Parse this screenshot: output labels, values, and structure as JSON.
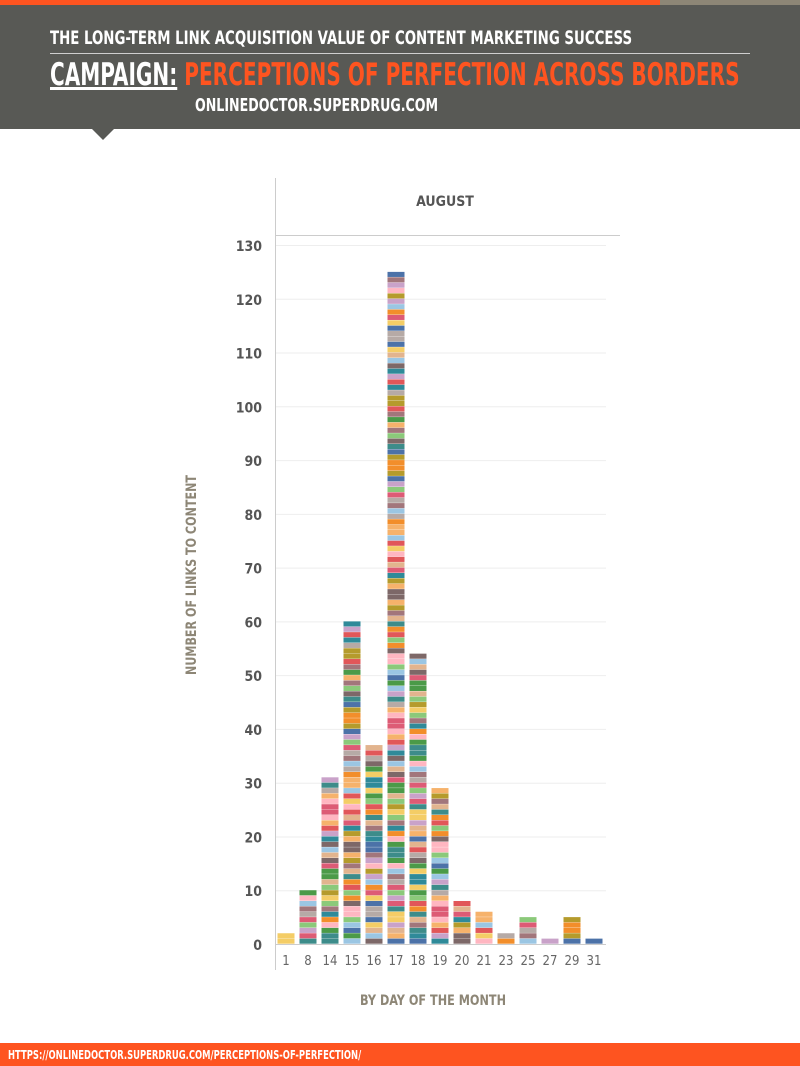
{
  "header": {
    "subtitle": "THE LONG-TERM LINK ACQUISITION VALUE OF CONTENT MARKETING SUCCESS",
    "campaign_label": "CAMPAIGN:",
    "campaign_name": "PERCEPTIONS OF PERFECTION ACROSS BORDERS",
    "site": "ONLINEDOCTOR.SUPERDRUG.COM"
  },
  "footer": {
    "url": "HTTPS://ONLINEDOCTOR.SUPERDRUG.COM/PERCEPTIONS-OF-PERFECTION/"
  },
  "chart_data": {
    "type": "bar",
    "stacked": true,
    "title": "AUGUST",
    "xlabel": "BY DAY OF THE MONTH",
    "ylabel": "NUMBER OF LINKS TO CONTENT",
    "categories": [
      "1",
      "8",
      "14",
      "15",
      "16",
      "17",
      "18",
      "19",
      "20",
      "21",
      "23",
      "25",
      "27",
      "29",
      "31"
    ],
    "values": [
      2,
      10,
      31,
      60,
      37,
      125,
      54,
      29,
      8,
      6,
      2,
      5,
      1,
      5,
      1
    ],
    "yticks": [
      0,
      10,
      20,
      30,
      40,
      50,
      60,
      70,
      80,
      90,
      100,
      110,
      120,
      130
    ],
    "ylim": [
      0,
      130
    ],
    "grid": true,
    "palette": [
      "#c9a2c9",
      "#3d8c8a",
      "#b59b2c",
      "#e2b48e",
      "#dd5b75",
      "#4c72a8",
      "#8bc97a",
      "#7d6868",
      "#f4cd66",
      "#9bc6e3",
      "#f28e2b",
      "#4b9a48",
      "#e15759",
      "#b6aaa6",
      "#ffb6c1",
      "#a2767b",
      "#2f8a99",
      "#f6b26b"
    ]
  }
}
